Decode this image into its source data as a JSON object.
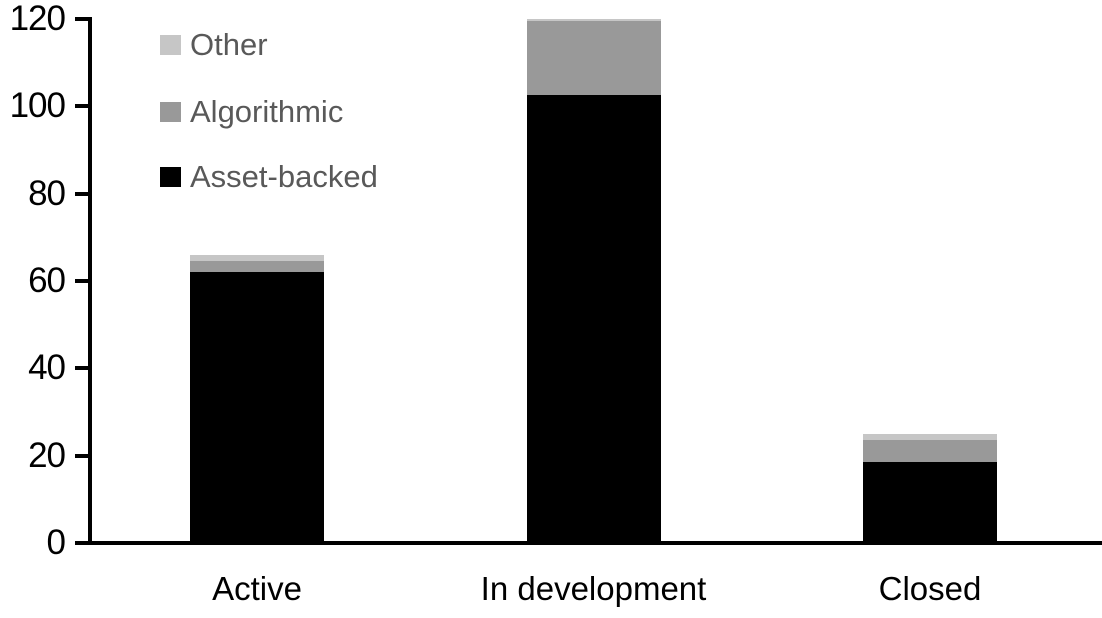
{
  "chart_data": {
    "type": "bar",
    "stacked": true,
    "title": "",
    "xlabel": "",
    "ylabel": "",
    "categories": [
      "Active",
      "In development",
      "Closed"
    ],
    "series": [
      {
        "name": "Asset-backed",
        "color": "#000000",
        "values": [
          62,
          102.5,
          18.5
        ]
      },
      {
        "name": "Algorithmic",
        "color": "#999999",
        "values": [
          2.5,
          17,
          5
        ]
      },
      {
        "name": "Other",
        "color": "#c6c6c6",
        "values": [
          1.5,
          0.5,
          1.5
        ]
      }
    ],
    "totals": [
      66,
      120,
      25
    ],
    "y_axis": {
      "min": 0,
      "max": 120,
      "tick_step": 20,
      "ticks": [
        0,
        20,
        40,
        60,
        80,
        100,
        120
      ]
    },
    "legend": {
      "position": "top-left",
      "order": [
        "Other",
        "Algorithmic",
        "Asset-backed"
      ]
    },
    "grid": false
  },
  "colors": {
    "background": "#ffffff",
    "axis": "#000000",
    "tick_label_text": "#000000",
    "category_label_text": "#000000",
    "legend_text": "#595959"
  }
}
